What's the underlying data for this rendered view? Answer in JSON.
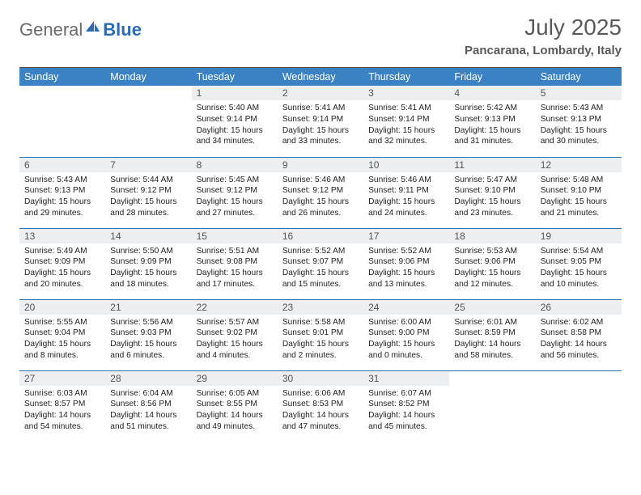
{
  "logo": {
    "text_general": "General",
    "text_blue": "Blue",
    "icon_color": "#2a6db5",
    "icon_name": "sail-icon"
  },
  "header": {
    "month_title": "July 2025",
    "location": "Pancarana, Lombardy, Italy"
  },
  "colors": {
    "header_bg": "#3a82c4",
    "header_text": "#ffffff",
    "cell_border": "#2a6db5",
    "daynum_bg": "#eceef0",
    "body_text": "#222222",
    "title_text": "#5a5a5a"
  },
  "weekdays": [
    "Sunday",
    "Monday",
    "Tuesday",
    "Wednesday",
    "Thursday",
    "Friday",
    "Saturday"
  ],
  "weeks": [
    [
      {
        "day": "",
        "sunrise": "",
        "sunset": "",
        "daylight": ""
      },
      {
        "day": "",
        "sunrise": "",
        "sunset": "",
        "daylight": ""
      },
      {
        "day": "1",
        "sunrise": "Sunrise: 5:40 AM",
        "sunset": "Sunset: 9:14 PM",
        "daylight": "Daylight: 15 hours and 34 minutes."
      },
      {
        "day": "2",
        "sunrise": "Sunrise: 5:41 AM",
        "sunset": "Sunset: 9:14 PM",
        "daylight": "Daylight: 15 hours and 33 minutes."
      },
      {
        "day": "3",
        "sunrise": "Sunrise: 5:41 AM",
        "sunset": "Sunset: 9:14 PM",
        "daylight": "Daylight: 15 hours and 32 minutes."
      },
      {
        "day": "4",
        "sunrise": "Sunrise: 5:42 AM",
        "sunset": "Sunset: 9:13 PM",
        "daylight": "Daylight: 15 hours and 31 minutes."
      },
      {
        "day": "5",
        "sunrise": "Sunrise: 5:43 AM",
        "sunset": "Sunset: 9:13 PM",
        "daylight": "Daylight: 15 hours and 30 minutes."
      }
    ],
    [
      {
        "day": "6",
        "sunrise": "Sunrise: 5:43 AM",
        "sunset": "Sunset: 9:13 PM",
        "daylight": "Daylight: 15 hours and 29 minutes."
      },
      {
        "day": "7",
        "sunrise": "Sunrise: 5:44 AM",
        "sunset": "Sunset: 9:12 PM",
        "daylight": "Daylight: 15 hours and 28 minutes."
      },
      {
        "day": "8",
        "sunrise": "Sunrise: 5:45 AM",
        "sunset": "Sunset: 9:12 PM",
        "daylight": "Daylight: 15 hours and 27 minutes."
      },
      {
        "day": "9",
        "sunrise": "Sunrise: 5:46 AM",
        "sunset": "Sunset: 9:12 PM",
        "daylight": "Daylight: 15 hours and 26 minutes."
      },
      {
        "day": "10",
        "sunrise": "Sunrise: 5:46 AM",
        "sunset": "Sunset: 9:11 PM",
        "daylight": "Daylight: 15 hours and 24 minutes."
      },
      {
        "day": "11",
        "sunrise": "Sunrise: 5:47 AM",
        "sunset": "Sunset: 9:10 PM",
        "daylight": "Daylight: 15 hours and 23 minutes."
      },
      {
        "day": "12",
        "sunrise": "Sunrise: 5:48 AM",
        "sunset": "Sunset: 9:10 PM",
        "daylight": "Daylight: 15 hours and 21 minutes."
      }
    ],
    [
      {
        "day": "13",
        "sunrise": "Sunrise: 5:49 AM",
        "sunset": "Sunset: 9:09 PM",
        "daylight": "Daylight: 15 hours and 20 minutes."
      },
      {
        "day": "14",
        "sunrise": "Sunrise: 5:50 AM",
        "sunset": "Sunset: 9:09 PM",
        "daylight": "Daylight: 15 hours and 18 minutes."
      },
      {
        "day": "15",
        "sunrise": "Sunrise: 5:51 AM",
        "sunset": "Sunset: 9:08 PM",
        "daylight": "Daylight: 15 hours and 17 minutes."
      },
      {
        "day": "16",
        "sunrise": "Sunrise: 5:52 AM",
        "sunset": "Sunset: 9:07 PM",
        "daylight": "Daylight: 15 hours and 15 minutes."
      },
      {
        "day": "17",
        "sunrise": "Sunrise: 5:52 AM",
        "sunset": "Sunset: 9:06 PM",
        "daylight": "Daylight: 15 hours and 13 minutes."
      },
      {
        "day": "18",
        "sunrise": "Sunrise: 5:53 AM",
        "sunset": "Sunset: 9:06 PM",
        "daylight": "Daylight: 15 hours and 12 minutes."
      },
      {
        "day": "19",
        "sunrise": "Sunrise: 5:54 AM",
        "sunset": "Sunset: 9:05 PM",
        "daylight": "Daylight: 15 hours and 10 minutes."
      }
    ],
    [
      {
        "day": "20",
        "sunrise": "Sunrise: 5:55 AM",
        "sunset": "Sunset: 9:04 PM",
        "daylight": "Daylight: 15 hours and 8 minutes."
      },
      {
        "day": "21",
        "sunrise": "Sunrise: 5:56 AM",
        "sunset": "Sunset: 9:03 PM",
        "daylight": "Daylight: 15 hours and 6 minutes."
      },
      {
        "day": "22",
        "sunrise": "Sunrise: 5:57 AM",
        "sunset": "Sunset: 9:02 PM",
        "daylight": "Daylight: 15 hours and 4 minutes."
      },
      {
        "day": "23",
        "sunrise": "Sunrise: 5:58 AM",
        "sunset": "Sunset: 9:01 PM",
        "daylight": "Daylight: 15 hours and 2 minutes."
      },
      {
        "day": "24",
        "sunrise": "Sunrise: 6:00 AM",
        "sunset": "Sunset: 9:00 PM",
        "daylight": "Daylight: 15 hours and 0 minutes."
      },
      {
        "day": "25",
        "sunrise": "Sunrise: 6:01 AM",
        "sunset": "Sunset: 8:59 PM",
        "daylight": "Daylight: 14 hours and 58 minutes."
      },
      {
        "day": "26",
        "sunrise": "Sunrise: 6:02 AM",
        "sunset": "Sunset: 8:58 PM",
        "daylight": "Daylight: 14 hours and 56 minutes."
      }
    ],
    [
      {
        "day": "27",
        "sunrise": "Sunrise: 6:03 AM",
        "sunset": "Sunset: 8:57 PM",
        "daylight": "Daylight: 14 hours and 54 minutes."
      },
      {
        "day": "28",
        "sunrise": "Sunrise: 6:04 AM",
        "sunset": "Sunset: 8:56 PM",
        "daylight": "Daylight: 14 hours and 51 minutes."
      },
      {
        "day": "29",
        "sunrise": "Sunrise: 6:05 AM",
        "sunset": "Sunset: 8:55 PM",
        "daylight": "Daylight: 14 hours and 49 minutes."
      },
      {
        "day": "30",
        "sunrise": "Sunrise: 6:06 AM",
        "sunset": "Sunset: 8:53 PM",
        "daylight": "Daylight: 14 hours and 47 minutes."
      },
      {
        "day": "31",
        "sunrise": "Sunrise: 6:07 AM",
        "sunset": "Sunset: 8:52 PM",
        "daylight": "Daylight: 14 hours and 45 minutes."
      },
      {
        "day": "",
        "sunrise": "",
        "sunset": "",
        "daylight": ""
      },
      {
        "day": "",
        "sunrise": "",
        "sunset": "",
        "daylight": ""
      }
    ]
  ]
}
